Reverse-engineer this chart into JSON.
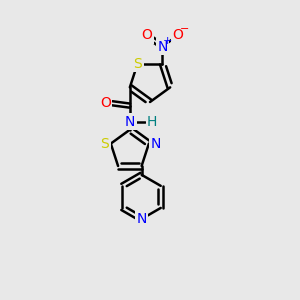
{
  "bg_color": "#e8e8e8",
  "atom_colors": {
    "C": "#000000",
    "N": "#0000ff",
    "O": "#ff0000",
    "S": "#cccc00",
    "H": "#008080"
  },
  "bond_color": "#000000",
  "bond_width": 1.8,
  "figsize": [
    3.0,
    3.0
  ],
  "dpi": 100
}
